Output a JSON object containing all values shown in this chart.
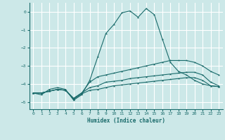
{
  "xlabel": "Humidex (Indice chaleur)",
  "ylabel": "",
  "bg_color": "#cce8e8",
  "grid_color": "#ffffff",
  "line_color": "#1a6b6b",
  "xlim": [
    -0.5,
    23.5
  ],
  "ylim": [
    -5.4,
    0.5
  ],
  "xticks": [
    0,
    1,
    2,
    3,
    4,
    5,
    6,
    7,
    8,
    9,
    10,
    11,
    12,
    13,
    14,
    15,
    16,
    17,
    18,
    19,
    20,
    21,
    22,
    23
  ],
  "yticks": [
    0,
    -1,
    -2,
    -3,
    -4,
    -5
  ],
  "curve1_x": [
    0,
    1,
    2,
    3,
    4,
    5,
    6,
    7,
    8,
    9,
    10,
    11,
    12,
    13,
    14,
    15,
    16,
    17,
    18,
    19,
    20,
    21,
    22,
    23
  ],
  "curve1_y": [
    -4.5,
    -4.6,
    -4.3,
    -4.2,
    -4.3,
    -4.9,
    -4.6,
    -3.8,
    -2.5,
    -1.2,
    -0.7,
    -0.05,
    0.05,
    -0.3,
    0.18,
    -0.15,
    -1.5,
    -2.8,
    -3.3,
    -3.5,
    -3.8,
    -4.0,
    -4.1,
    -4.15
  ],
  "curve2_x": [
    0,
    1,
    2,
    3,
    4,
    5,
    6,
    7,
    8,
    9,
    10,
    11,
    12,
    13,
    14,
    15,
    16,
    17,
    18,
    19,
    20,
    21,
    22,
    23
  ],
  "curve2_y": [
    -4.5,
    -4.5,
    -4.4,
    -4.3,
    -4.35,
    -4.8,
    -4.5,
    -3.9,
    -3.6,
    -3.5,
    -3.4,
    -3.3,
    -3.2,
    -3.1,
    -3.0,
    -2.9,
    -2.8,
    -2.7,
    -2.7,
    -2.7,
    -2.8,
    -3.0,
    -3.3,
    -3.5
  ],
  "curve3_x": [
    0,
    1,
    2,
    3,
    4,
    5,
    6,
    7,
    8,
    9,
    10,
    11,
    12,
    13,
    14,
    15,
    16,
    17,
    18,
    19,
    20,
    21,
    22,
    23
  ],
  "curve3_y": [
    -4.5,
    -4.5,
    -4.4,
    -4.3,
    -4.35,
    -4.8,
    -4.5,
    -4.2,
    -4.1,
    -3.9,
    -3.85,
    -3.8,
    -3.7,
    -3.65,
    -3.6,
    -3.55,
    -3.5,
    -3.45,
    -3.4,
    -3.35,
    -3.35,
    -3.5,
    -3.9,
    -4.1
  ],
  "curve4_x": [
    0,
    1,
    2,
    3,
    4,
    5,
    6,
    7,
    8,
    9,
    10,
    11,
    12,
    13,
    14,
    15,
    16,
    17,
    18,
    19,
    20,
    21,
    22,
    23
  ],
  "curve4_y": [
    -4.5,
    -4.5,
    -4.4,
    -4.3,
    -4.35,
    -4.85,
    -4.55,
    -4.35,
    -4.3,
    -4.2,
    -4.1,
    -4.05,
    -4.0,
    -3.95,
    -3.9,
    -3.85,
    -3.8,
    -3.75,
    -3.7,
    -3.65,
    -3.65,
    -3.8,
    -4.1,
    -4.15
  ]
}
